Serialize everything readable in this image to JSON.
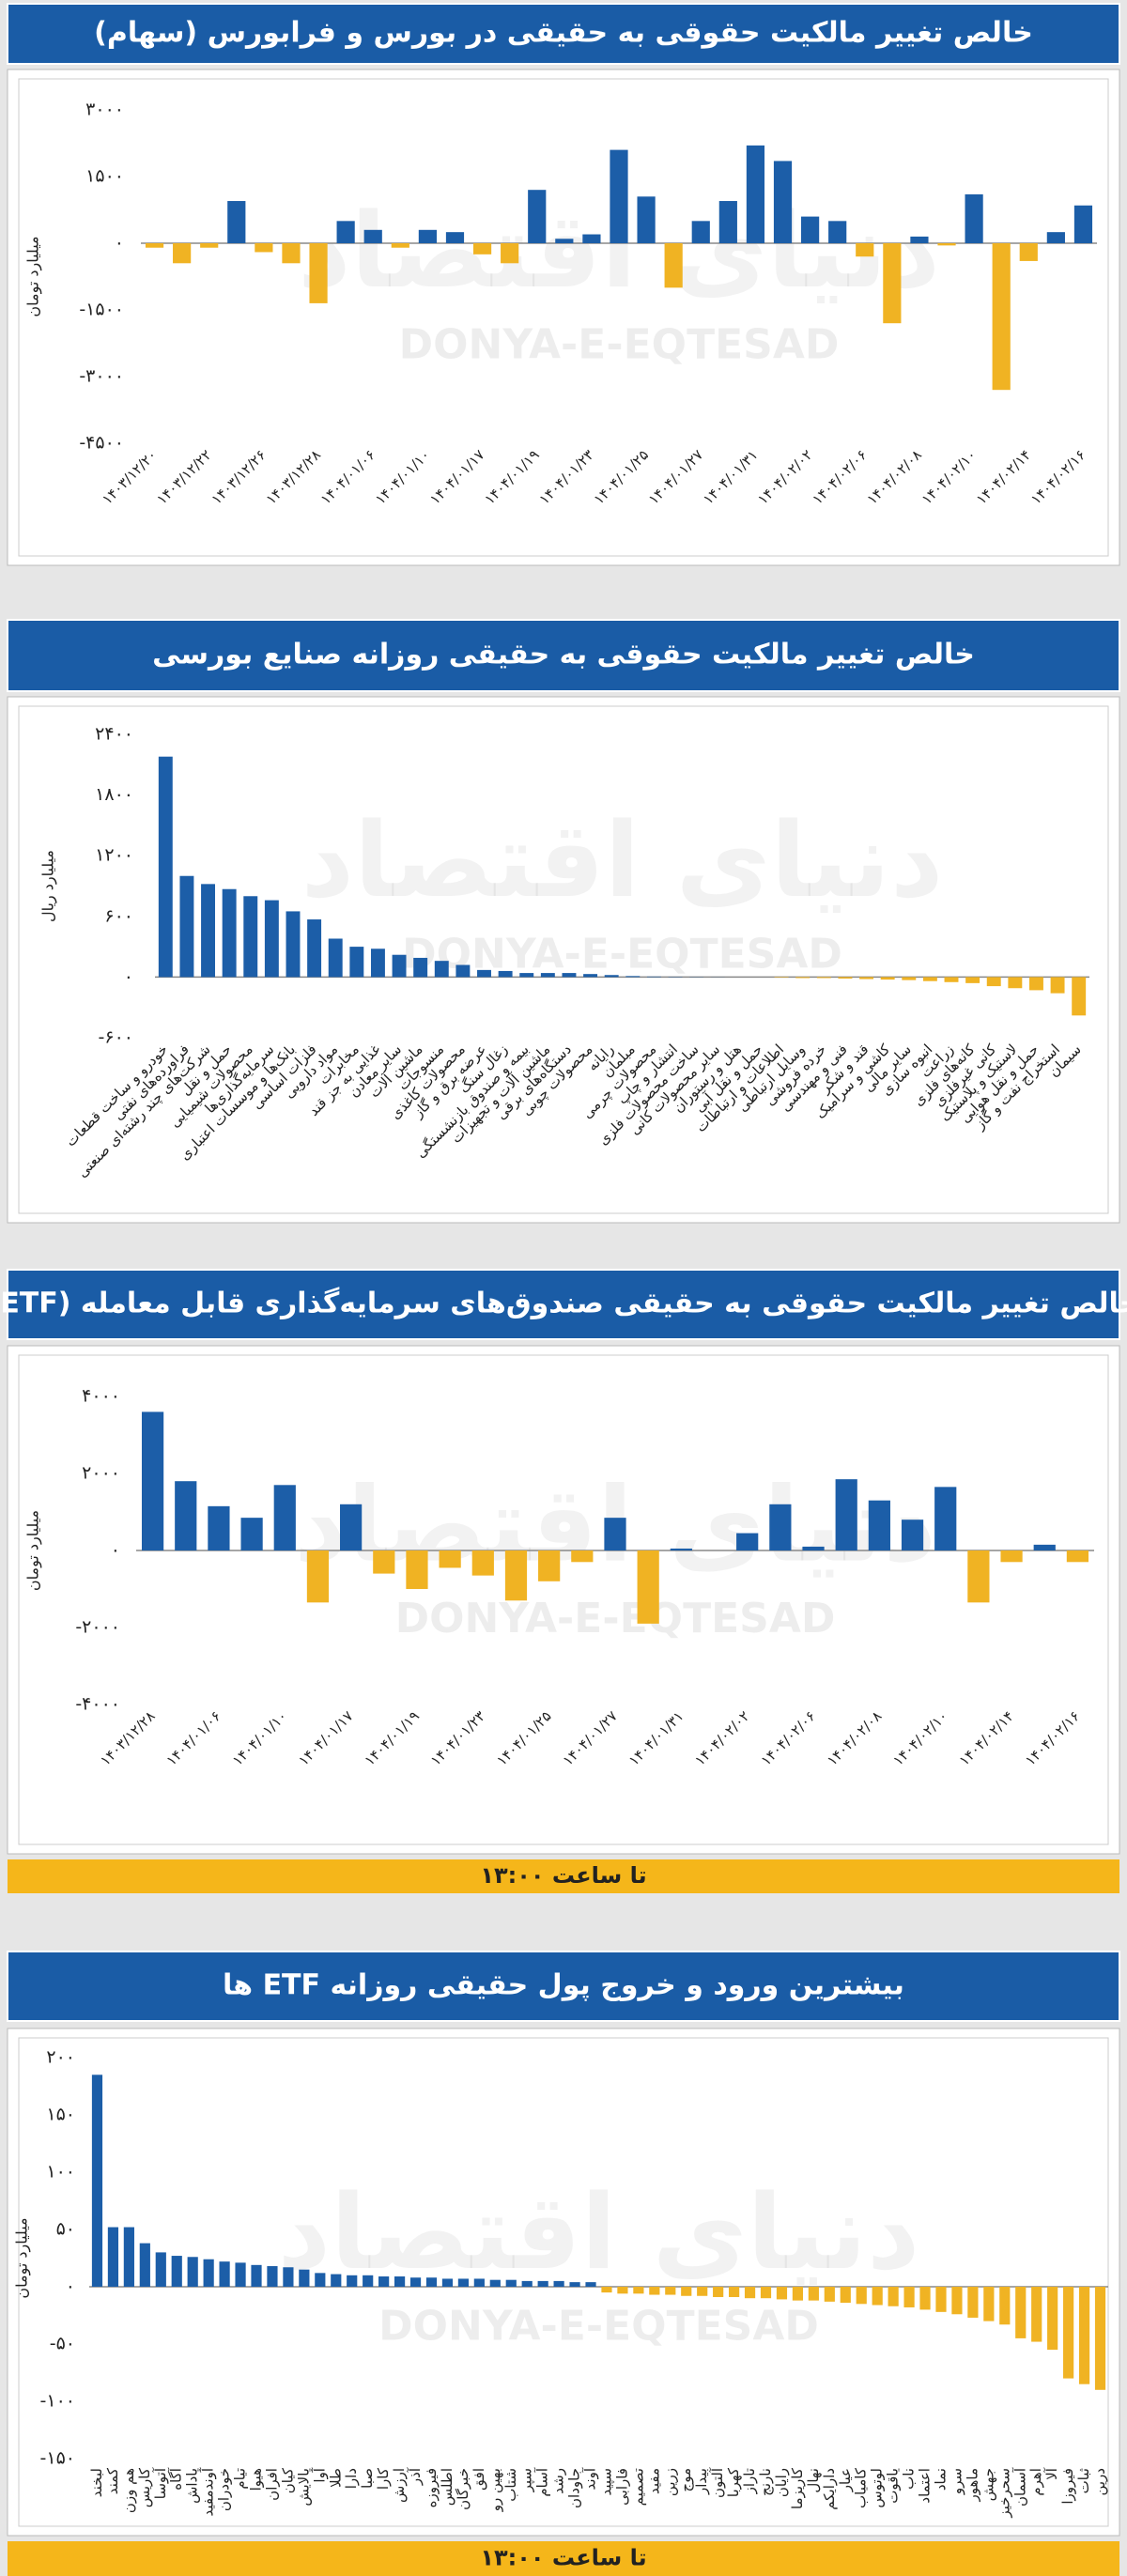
{
  "watermark": [
    "دنیای اقتصاد",
    "DONYA-E-EQTESAD"
  ],
  "chart_data": [
    {
      "type": "bar",
      "title": "خالص تغییر مالکیت حقوقی به حقیقی در بورس و فرابورس (سهام)",
      "ylabel": "میلیارد تومان",
      "colors": {
        "positive": "#1c5ea8",
        "negative": "#f0b323"
      },
      "categories": [
        "۱۴۰۳/۱۲/۲۰",
        null,
        "۱۴۰۳/۱۲/۲۲",
        null,
        "۱۴۰۳/۱۲/۲۶",
        null,
        "۱۴۰۳/۱۲/۲۸",
        null,
        "۱۴۰۴/۰۱/۰۶",
        null,
        "۱۴۰۴/۰۱/۱۰",
        null,
        "۱۴۰۴/۰۱/۱۷",
        null,
        "۱۴۰۴/۰۱/۱۹",
        null,
        "۱۴۰۴/۰۱/۲۳",
        null,
        "۱۴۰۴/۰۱/۲۵",
        null,
        "۱۴۰۴/۰۱/۲۷",
        null,
        "۱۴۰۴/۰۱/۳۱",
        null,
        "۱۴۰۴/۰۲/۰۲",
        null,
        "۱۴۰۴/۰۲/۰۶",
        null,
        "۱۴۰۴/۰۲/۰۸",
        null,
        "۱۴۰۴/۰۲/۱۰",
        null,
        "۱۴۰۴/۰۲/۱۴",
        null,
        "۱۴۰۴/۰۲/۱۶"
      ],
      "values": [
        -100,
        -450,
        -100,
        950,
        -200,
        -450,
        -1350,
        500,
        300,
        -100,
        300,
        250,
        -250,
        -450,
        1200,
        100,
        200,
        2100,
        1050,
        -1000,
        500,
        950,
        2200,
        1850,
        600,
        500,
        -300,
        -1800,
        150,
        -50,
        1100,
        -3300,
        -400,
        250,
        850
      ],
      "ylim": [
        -4500,
        3000
      ],
      "yticks": [
        {
          "value": 3000,
          "label": "۳۰۰۰"
        },
        {
          "value": 1500,
          "label": "۱۵۰۰"
        },
        {
          "value": 0,
          "label": "۰"
        },
        {
          "value": -1500,
          "label": "-۱۵۰۰"
        },
        {
          "value": -3000,
          "label": "-۳۰۰۰"
        },
        {
          "value": -4500,
          "label": "-۴۵۰۰"
        }
      ],
      "grid": false
    },
    {
      "type": "bar",
      "title": "خالص تغییر مالکیت حقوقی به حقیقی روزانه صنایع بورسی",
      "ylabel": "میلیارد ریال",
      "colors": {
        "positive": "#1c5ea8",
        "negative": "#f0b323"
      },
      "categories": [
        "خودرو و ساخت قطعات",
        "فراورده‌های نفتی",
        "شرکت‌های چند رشته‌ای صنعتی",
        "حمل و نقل",
        "محصولات شیمیایی",
        "سرمایه‌گذاری‌ها",
        "بانک‌ها و موسسات اعتباری",
        "فلزات اساسی",
        "مواد دارویی",
        "مخابرات",
        "غذایی به جز قند",
        "سایر معادن",
        "ماشین آلات",
        "منسوجات",
        "محصولات کاغذی",
        "عرضه برق و گاز",
        "زغال سنگ",
        "بیمه و صندوق بازنشستگی",
        "ماشین آلات و تجهیزات",
        "دستگاه‌های برقی",
        "محصولات چوبی",
        "رایانه",
        "مبلمان",
        "محصولات چرمی",
        "انتشار و چاپ",
        "ساخت محصولات فلزی",
        "سایر محصولات کانی",
        "هتل و رستوران",
        "حمل و نقل آبی",
        "اطلاعات و ارتباطات",
        "وسایل ارتباطی",
        "خرده فروشی",
        "فنی و مهندسی",
        "قند و شکر",
        "کاشی و سرامیک",
        "سایر مالی",
        "انبوه سازی",
        "زراعت",
        "کانه‌های فلزی",
        "کانی غیرفلزی",
        "لاستیک و پلاستیک",
        "حمل و نقل هوایی",
        "استخراج نفت و گاز",
        "سیمان"
      ],
      "values": [
        2180,
        1000,
        920,
        870,
        800,
        760,
        650,
        570,
        380,
        300,
        280,
        220,
        190,
        160,
        120,
        70,
        60,
        40,
        40,
        40,
        30,
        20,
        10,
        5,
        3,
        2,
        1,
        0,
        0,
        -5,
        -10,
        -10,
        -15,
        -20,
        -25,
        -30,
        -40,
        -50,
        -60,
        -90,
        -110,
        -130,
        -160,
        -380
      ],
      "ylim": [
        -600,
        2400
      ],
      "yticks": [
        {
          "value": 2400,
          "label": "۲۴۰۰"
        },
        {
          "value": 1800,
          "label": "۱۸۰۰"
        },
        {
          "value": 1200,
          "label": "۱۲۰۰"
        },
        {
          "value": 600,
          "label": "۶۰۰"
        },
        {
          "value": 0,
          "label": "۰"
        },
        {
          "value": -600,
          "label": "-۶۰۰"
        }
      ],
      "grid": false
    },
    {
      "type": "bar",
      "title": "خالص تغییر مالکیت حقوقی به حقیقی صندوق‌های سرمایه‌گذاری قابل معامله (ETF)",
      "ylabel": "میلیارد تومان",
      "footnote": "تا ساعت ۱۳:۰۰",
      "colors": {
        "positive": "#1c5ea8",
        "negative": "#f0b323"
      },
      "categories": [
        "۱۴۰۳/۱۲/۲۸",
        null,
        "۱۴۰۴/۰۱/۰۶",
        null,
        "۱۴۰۴/۰۱/۱۰",
        null,
        "۱۴۰۴/۰۱/۱۷",
        null,
        "۱۴۰۴/۰۱/۱۹",
        null,
        "۱۴۰۴/۰۱/۲۳",
        null,
        "۱۴۰۴/۰۱/۲۵",
        null,
        "۱۴۰۴/۰۱/۲۷",
        null,
        "۱۴۰۴/۰۱/۳۱",
        null,
        "۱۴۰۴/۰۲/۰۲",
        null,
        "۱۴۰۴/۰۲/۰۶",
        null,
        "۱۴۰۴/۰۲/۰۸",
        null,
        "۱۴۰۴/۰۲/۱۰",
        null,
        "۱۴۰۴/۰۲/۱۴",
        null,
        "۱۴۰۴/۰۲/۱۶"
      ],
      "values": [
        3600,
        1800,
        1150,
        850,
        1700,
        -1350,
        1200,
        -600,
        -1000,
        -450,
        -650,
        -1300,
        -800,
        -300,
        850,
        -1900,
        50,
        0,
        450,
        1200,
        100,
        1850,
        1300,
        800,
        1650,
        -1350,
        -300,
        150,
        -300
      ],
      "ylim": [
        -4000,
        4000
      ],
      "yticks": [
        {
          "value": 4000,
          "label": "۴۰۰۰"
        },
        {
          "value": 2000,
          "label": "۲۰۰۰"
        },
        {
          "value": 0,
          "label": "۰"
        },
        {
          "value": -2000,
          "label": "-۲۰۰۰"
        },
        {
          "value": -4000,
          "label": "-۴۰۰۰"
        }
      ],
      "grid": false
    },
    {
      "type": "bar",
      "title": "بیشترین ورود و خروج پول حقیقی روزانه ETF ها",
      "ylabel": "میلیارد تومان",
      "footnote": "تا ساعت ۱۳:۰۰",
      "colors": {
        "positive": "#1c5ea8",
        "negative": "#f0b323"
      },
      "categories": [
        "لبخند",
        "کمند",
        "هم وزن",
        "کاریس",
        "آتوسا",
        "آگاه",
        "پاداش",
        "آوندمفید",
        "خودران",
        "تیام",
        "هیوا",
        "افران",
        "کیان",
        "پالایش",
        "آوا",
        "طلا",
        "دارا",
        "صبا",
        "کارا",
        "ارزش",
        "آذر",
        "فیروزه",
        "اطلس",
        "خبرگان",
        "افق",
        "بهین رو",
        "شتاب",
        "سپر",
        "آسام",
        "رشد",
        "جاودان",
        "آوند",
        "سپید",
        "فارابی",
        "تصمیم",
        "مفید",
        "زرین",
        "موج",
        "بیدار",
        "آلتون",
        "کهربا",
        "تاراز",
        "نارنج",
        "رایان",
        "کاریزما",
        "نهال",
        "دارایکم",
        "عیار",
        "کامیاب",
        "لوتوس",
        "یاقوت",
        "ناب",
        "اعتماد",
        "نماد",
        "سرو",
        "ماهور",
        "جهش",
        "سحرخیز",
        "آسمان",
        "اهرم",
        "آلا",
        "فیروزا",
        "ثبات",
        "درین"
      ],
      "values": [
        185,
        52,
        52,
        38,
        30,
        27,
        26,
        24,
        22,
        21,
        19,
        18,
        17,
        15,
        12,
        11,
        10,
        10,
        9,
        9,
        8,
        8,
        7,
        7,
        7,
        6,
        6,
        5,
        5,
        5,
        4,
        4,
        -5,
        -6,
        -6,
        -7,
        -7,
        -8,
        -8,
        -9,
        -9,
        -10,
        -10,
        -11,
        -12,
        -12,
        -13,
        -14,
        -15,
        -16,
        -17,
        -18,
        -20,
        -22,
        -24,
        -27,
        -30,
        -33,
        -45,
        -48,
        -55,
        -80,
        -85,
        -90
      ],
      "ylim": [
        -150,
        200
      ],
      "yticks": [
        {
          "value": 200,
          "label": "۲۰۰"
        },
        {
          "value": 150,
          "label": "۱۵۰"
        },
        {
          "value": 100,
          "label": "۱۰۰"
        },
        {
          "value": 50,
          "label": "۵۰"
        },
        {
          "value": 0,
          "label": "۰"
        },
        {
          "value": -50,
          "label": "-۵۰"
        },
        {
          "value": -100,
          "label": "-۱۰۰"
        },
        {
          "value": -150,
          "label": "-۱۵۰"
        }
      ],
      "grid": false
    }
  ]
}
